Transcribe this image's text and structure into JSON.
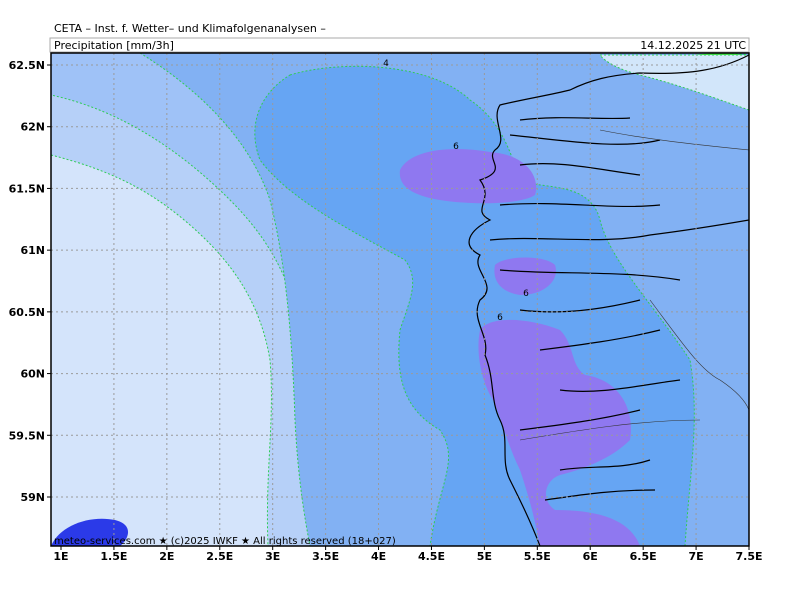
{
  "header": {
    "title": "CETA – Inst. f. Wetter– und Klimafolgenanalysen –",
    "parameter": "Precipitation [mm/3h]",
    "timestamp": "14.12.2025 21 UTC"
  },
  "x_axis": {
    "labels": [
      "1E",
      "1.5E",
      "2E",
      "2.5E",
      "3E",
      "3.5E",
      "4E",
      "4.5E",
      "5E",
      "5.5E",
      "6E",
      "6.5E",
      "7E",
      "7.5E"
    ]
  },
  "y_axis": {
    "labels": [
      "62.5N",
      "62N",
      "61.5N",
      "61N",
      "60.5N",
      "60N",
      "59.5N",
      "59N"
    ]
  },
  "contour_labels": [
    "4",
    "6",
    "6",
    "6"
  ],
  "footer": "meteo-services.com ★ (c)2025 IWKF ★ All rights reserved (18+027)"
}
